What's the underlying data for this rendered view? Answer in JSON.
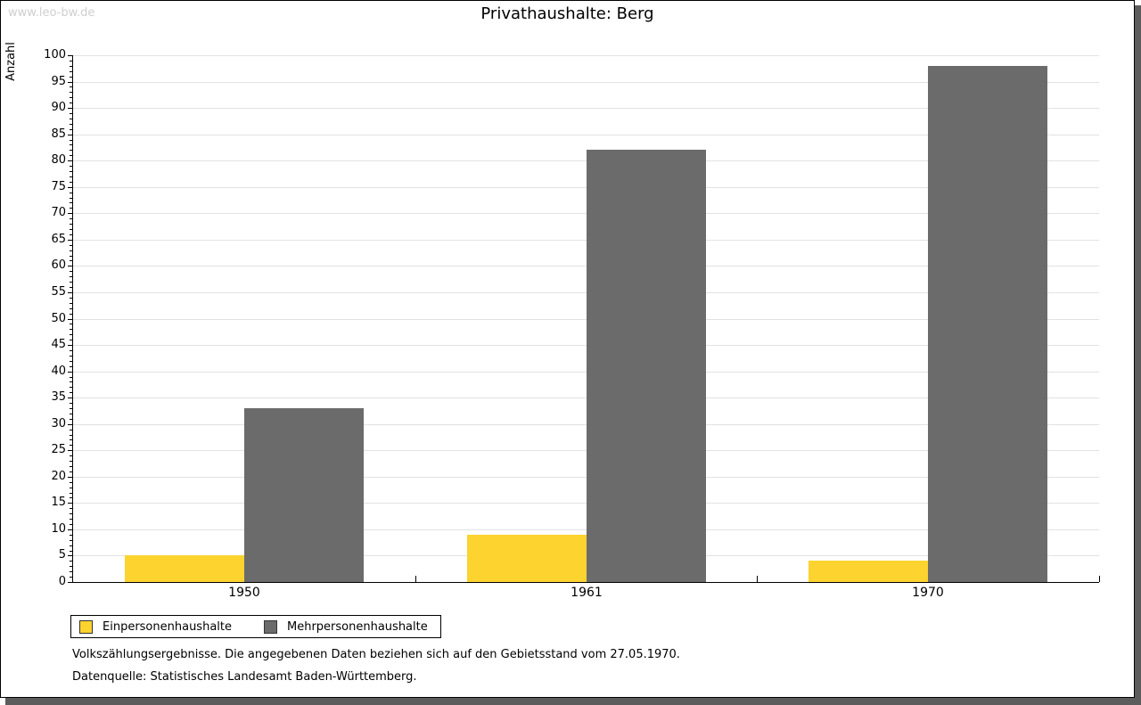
{
  "watermark": "www.leo-bw.de",
  "chart_data": {
    "type": "bar",
    "title": "Privathaushalte: Berg",
    "categories": [
      "1950",
      "1961",
      "1970"
    ],
    "series": [
      {
        "name": "Einpersonenhaushalte",
        "color": "#fcd32f",
        "values": [
          5,
          9,
          4
        ]
      },
      {
        "name": "Mehrpersonenhaushalte",
        "color": "#6b6b6b",
        "values": [
          33,
          82,
          98
        ]
      }
    ],
    "xlabel": "",
    "ylabel": "Anzahl",
    "ylim": [
      0,
      100
    ],
    "ytick_step": 5,
    "yminor_step": 1,
    "grid": true,
    "legend_position": "bottom-left",
    "gridline_color": "#e2e2e2"
  },
  "footnotes": [
    "Volkszählungsergebnisse. Die angegebenen Daten beziehen sich auf den Gebietsstand vom 27.05.1970.",
    "Datenquelle: Statistisches Landesamt Baden-Württemberg."
  ]
}
